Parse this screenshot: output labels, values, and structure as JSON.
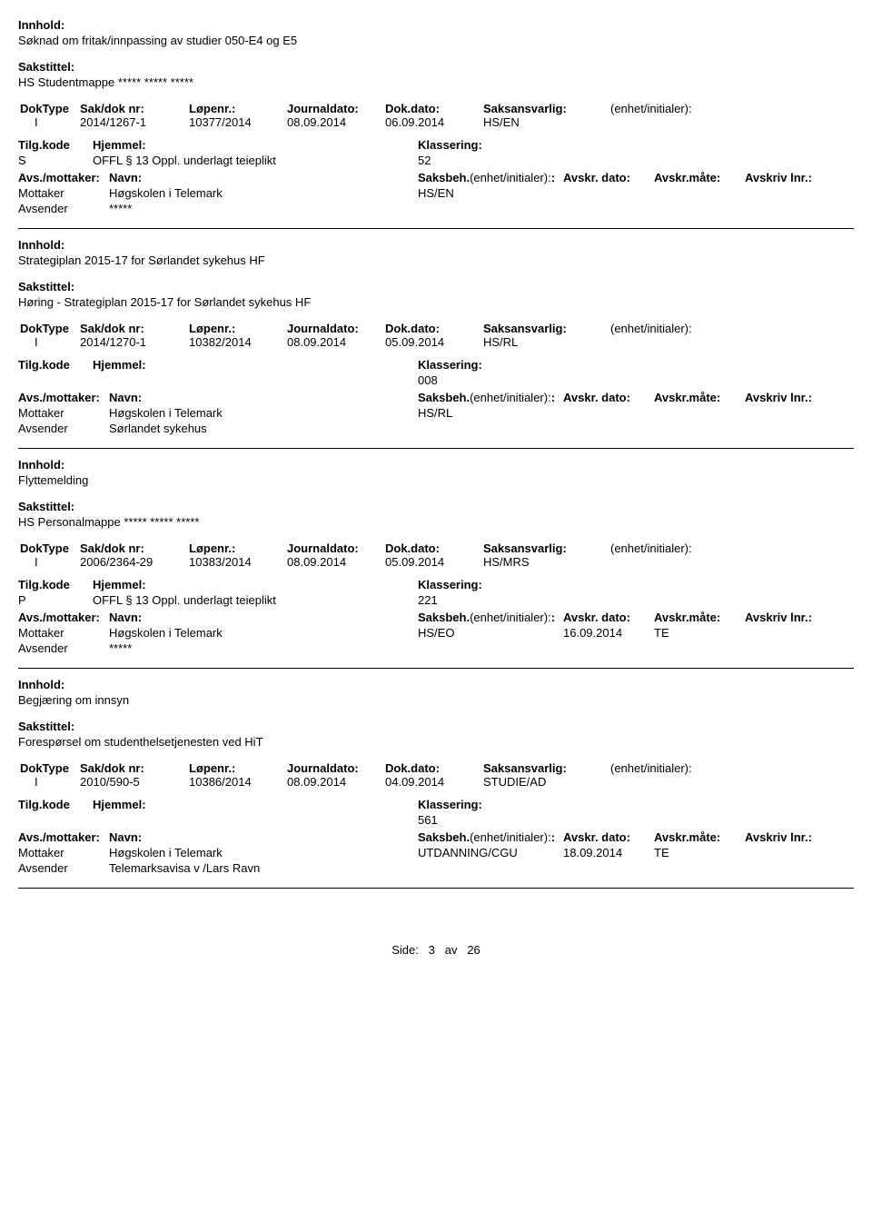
{
  "labels": {
    "innhold": "Innhold:",
    "sakstittel": "Sakstittel:",
    "doktype": "DokType",
    "saknr": "Sak/dok nr:",
    "lopenr": "Løpenr.:",
    "journaldato": "Journaldato:",
    "dokdato": "Dok.dato:",
    "saksansvarlig": "Saksansvarlig:",
    "enhetinit": "(enhet/initialer):",
    "tilgkode": "Tilg.kode",
    "hjemmel": "Hjemmel:",
    "klassering": "Klassering:",
    "avsmottaker": "Avs./mottaker:",
    "navn": "Navn:",
    "saksbeh": "Saksbeh.",
    "saksbeh_enhet": "(enhet/initialer):",
    "avskrdato": "Avskr. dato:",
    "avskrmate": "Avskr.måte:",
    "avskrivlnr": "Avskriv lnr.:",
    "mottaker": "Mottaker",
    "avsender": "Avsender"
  },
  "records": [
    {
      "innhold": "Søknad om fritak/innpassing av studier 050-E4 og E5",
      "sakstittel": "HS Studentmappe ***** ***** *****",
      "doktype": "I",
      "saknr": "2014/1267-1",
      "lopenr": "10377/2014",
      "journaldato": "08.09.2014",
      "dokdato": "06.09.2014",
      "saksansvarlig": "HS/EN",
      "enhetinit": "",
      "tilgkode": "S",
      "hjemmel": "OFFL § 13 Oppl. underlagt teieplikt",
      "klassering": "52",
      "parties": [
        {
          "role": "Mottaker",
          "navn": "Høgskolen i Telemark",
          "saksbeh": "HS/EN",
          "avskrdato": "",
          "avskrmate": "",
          "avskrlnr": ""
        },
        {
          "role": "Avsender",
          "navn": "*****",
          "saksbeh": "",
          "avskrdato": "",
          "avskrmate": "",
          "avskrlnr": ""
        }
      ]
    },
    {
      "innhold": "Strategiplan 2015-17 for Sørlandet sykehus HF",
      "sakstittel": "Høring - Strategiplan 2015-17 for Sørlandet sykehus HF",
      "doktype": "I",
      "saknr": "2014/1270-1",
      "lopenr": "10382/2014",
      "journaldato": "08.09.2014",
      "dokdato": "05.09.2014",
      "saksansvarlig": "HS/RL",
      "enhetinit": "",
      "tilgkode": "",
      "hjemmel": "",
      "klassering": "008",
      "parties": [
        {
          "role": "Mottaker",
          "navn": "Høgskolen i Telemark",
          "saksbeh": "HS/RL",
          "avskrdato": "",
          "avskrmate": "",
          "avskrlnr": ""
        },
        {
          "role": "Avsender",
          "navn": "Sørlandet sykehus",
          "saksbeh": "",
          "avskrdato": "",
          "avskrmate": "",
          "avskrlnr": ""
        }
      ]
    },
    {
      "innhold": "Flyttemelding",
      "sakstittel": "HS Personalmappe ***** ***** *****",
      "doktype": "I",
      "saknr": "2006/2364-29",
      "lopenr": "10383/2014",
      "journaldato": "08.09.2014",
      "dokdato": "05.09.2014",
      "saksansvarlig": "HS/MRS",
      "enhetinit": "",
      "tilgkode": "P",
      "hjemmel": "OFFL § 13 Oppl. underlagt teieplikt",
      "klassering": "221",
      "parties": [
        {
          "role": "Mottaker",
          "navn": "Høgskolen i Telemark",
          "saksbeh": "HS/EO",
          "avskrdato": "16.09.2014",
          "avskrmate": "TE",
          "avskrlnr": ""
        },
        {
          "role": "Avsender",
          "navn": "*****",
          "saksbeh": "",
          "avskrdato": "",
          "avskrmate": "",
          "avskrlnr": ""
        }
      ]
    },
    {
      "innhold": "Begjæring om innsyn",
      "sakstittel": "Forespørsel om studenthelsetjenesten ved HiT",
      "doktype": "I",
      "saknr": "2010/590-5",
      "lopenr": "10386/2014",
      "journaldato": "08.09.2014",
      "dokdato": "04.09.2014",
      "saksansvarlig": "STUDIE/AD",
      "enhetinit": "",
      "tilgkode": "",
      "hjemmel": "",
      "klassering": "561",
      "parties": [
        {
          "role": "Mottaker",
          "navn": "Høgskolen i Telemark",
          "saksbeh": "UTDANNING/CGU",
          "avskrdato": "18.09.2014",
          "avskrmate": "TE",
          "avskrlnr": ""
        },
        {
          "role": "Avsender",
          "navn": "Telemarksavisa v /Lars Ravn",
          "saksbeh": "",
          "avskrdato": "",
          "avskrmate": "",
          "avskrlnr": ""
        }
      ]
    }
  ],
  "footer": {
    "prefix": "Side:",
    "page": "3",
    "sep": "av",
    "total": "26"
  }
}
